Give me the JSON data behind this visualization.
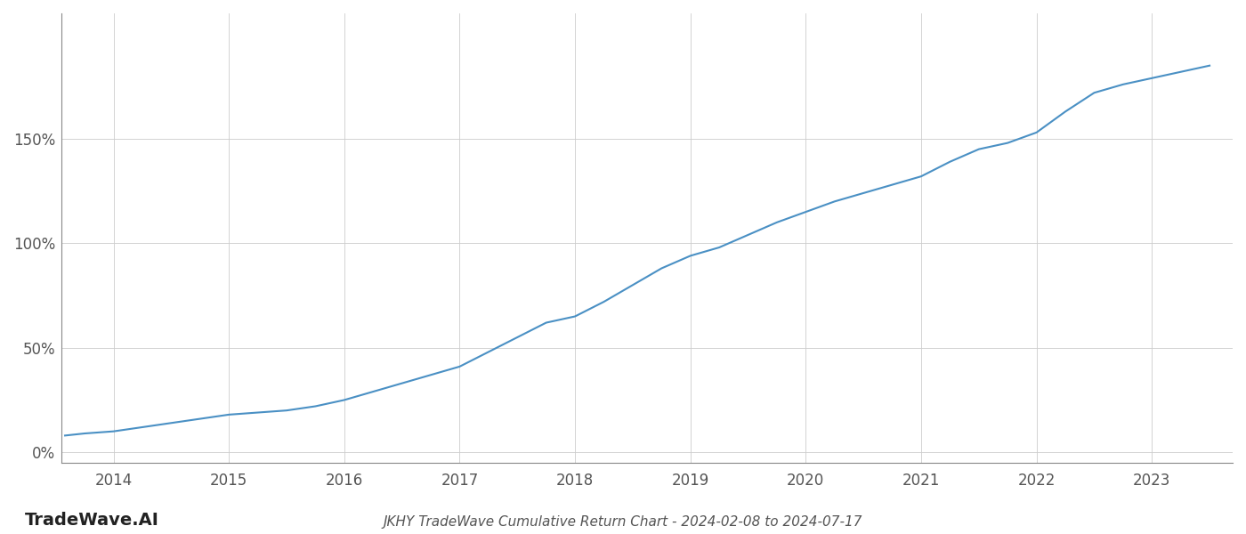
{
  "title": "JKHY TradeWave Cumulative Return Chart - 2024-02-08 to 2024-07-17",
  "watermark": "TradeWave.AI",
  "line_color": "#4a90c4",
  "background_color": "#ffffff",
  "grid_color": "#cccccc",
  "axis_color": "#888888",
  "x_years": [
    2014,
    2015,
    2016,
    2017,
    2018,
    2019,
    2020,
    2021,
    2022,
    2023
  ],
  "x_data": [
    2013.58,
    2013.75,
    2014.0,
    2014.25,
    2014.5,
    2014.75,
    2015.0,
    2015.25,
    2015.5,
    2015.75,
    2016.0,
    2016.25,
    2016.5,
    2016.75,
    2017.0,
    2017.25,
    2017.5,
    2017.75,
    2018.0,
    2018.25,
    2018.5,
    2018.75,
    2019.0,
    2019.25,
    2019.5,
    2019.75,
    2020.0,
    2020.25,
    2020.5,
    2020.75,
    2021.0,
    2021.25,
    2021.5,
    2021.75,
    2022.0,
    2022.25,
    2022.5,
    2022.75,
    2023.0,
    2023.25,
    2023.5
  ],
  "y_data": [
    8,
    9,
    10,
    12,
    14,
    16,
    18,
    19,
    20,
    22,
    25,
    29,
    33,
    37,
    41,
    48,
    55,
    62,
    65,
    72,
    80,
    88,
    94,
    98,
    104,
    110,
    115,
    120,
    124,
    128,
    132,
    139,
    145,
    148,
    153,
    163,
    172,
    176,
    179,
    182,
    185
  ],
  "ylim": [
    -5,
    210
  ],
  "yticks": [
    0,
    50,
    100,
    150
  ],
  "xlim_left": 2013.55,
  "xlim_right": 2023.7,
  "title_fontsize": 11,
  "tick_fontsize": 12,
  "watermark_fontsize": 14,
  "line_width": 1.5
}
